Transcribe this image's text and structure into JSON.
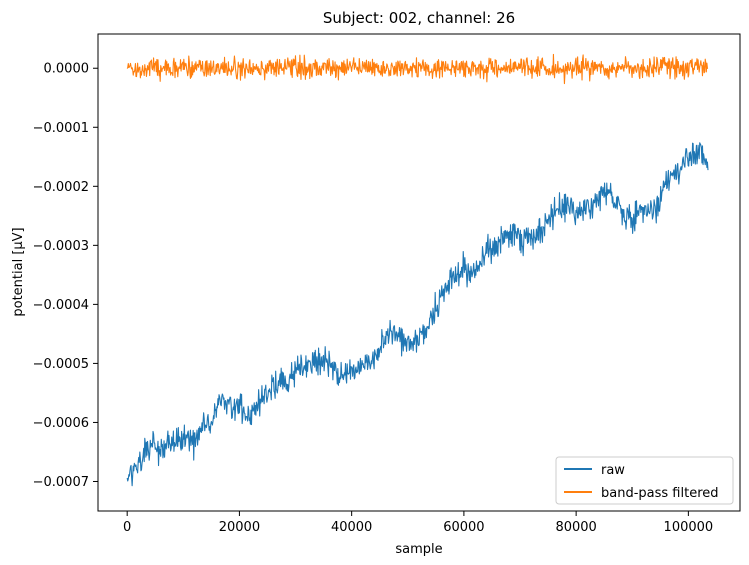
{
  "chart_data": {
    "type": "line",
    "title": "Subject: 002, channel: 26",
    "xlabel": "sample",
    "ylabel": "potential [µV]",
    "xlim": [
      -5200,
      109200
    ],
    "ylim": [
      -0.00075,
      5.8e-05
    ],
    "xticks": [
      0,
      20000,
      40000,
      60000,
      80000,
      100000
    ],
    "xtick_labels": [
      "0",
      "20000",
      "40000",
      "60000",
      "80000",
      "100000"
    ],
    "yticks": [
      0.0,
      -0.0001,
      -0.0002,
      -0.0003,
      -0.0004,
      -0.0005,
      -0.0006,
      -0.0007
    ],
    "ytick_labels": [
      "0.0000",
      "−0.0001",
      "−0.0002",
      "−0.0003",
      "−0.0004",
      "−0.0005",
      "−0.0006",
      "−0.0007"
    ],
    "grid": false,
    "legend_position": "lower right",
    "series": [
      {
        "name": "raw",
        "color": "#1f77b4",
        "x": [
          0,
          2000,
          4000,
          6000,
          8000,
          10000,
          12000,
          14000,
          16000,
          18000,
          20000,
          22000,
          24000,
          26000,
          28000,
          30000,
          32000,
          34000,
          36000,
          38000,
          40000,
          42000,
          44000,
          46000,
          48000,
          50000,
          52000,
          54000,
          56000,
          58000,
          60000,
          62000,
          64000,
          66000,
          68000,
          70000,
          72000,
          74000,
          76000,
          78000,
          80000,
          82000,
          84000,
          86000,
          88000,
          90000,
          92000,
          94000,
          96000,
          98000,
          100000,
          102000,
          103500
        ],
        "y": [
          -0.00069,
          -0.000675,
          -0.00064,
          -0.00065,
          -0.000635,
          -0.000625,
          -0.00063,
          -0.00061,
          -0.00057,
          -0.000565,
          -0.000575,
          -0.00058,
          -0.000565,
          -0.000535,
          -0.00053,
          -0.000515,
          -0.000505,
          -0.000495,
          -0.0005,
          -0.00052,
          -0.00051,
          -0.000505,
          -0.000495,
          -0.00046,
          -0.000445,
          -0.00047,
          -0.000455,
          -0.000425,
          -0.00039,
          -0.00036,
          -0.00034,
          -0.000345,
          -0.00031,
          -0.0003,
          -0.00028,
          -0.00029,
          -0.000285,
          -0.00027,
          -0.00025,
          -0.00023,
          -0.000245,
          -0.00024,
          -0.000215,
          -0.00021,
          -0.000245,
          -0.000255,
          -0.000235,
          -0.000245,
          -0.00019,
          -0.00017,
          -0.00015,
          -0.000135,
          -0.00016
        ]
      },
      {
        "name": "band-pass filtered",
        "color": "#ff7f0e",
        "x": [
          0,
          103500
        ],
        "y": [
          0.0,
          0.0
        ]
      }
    ]
  }
}
